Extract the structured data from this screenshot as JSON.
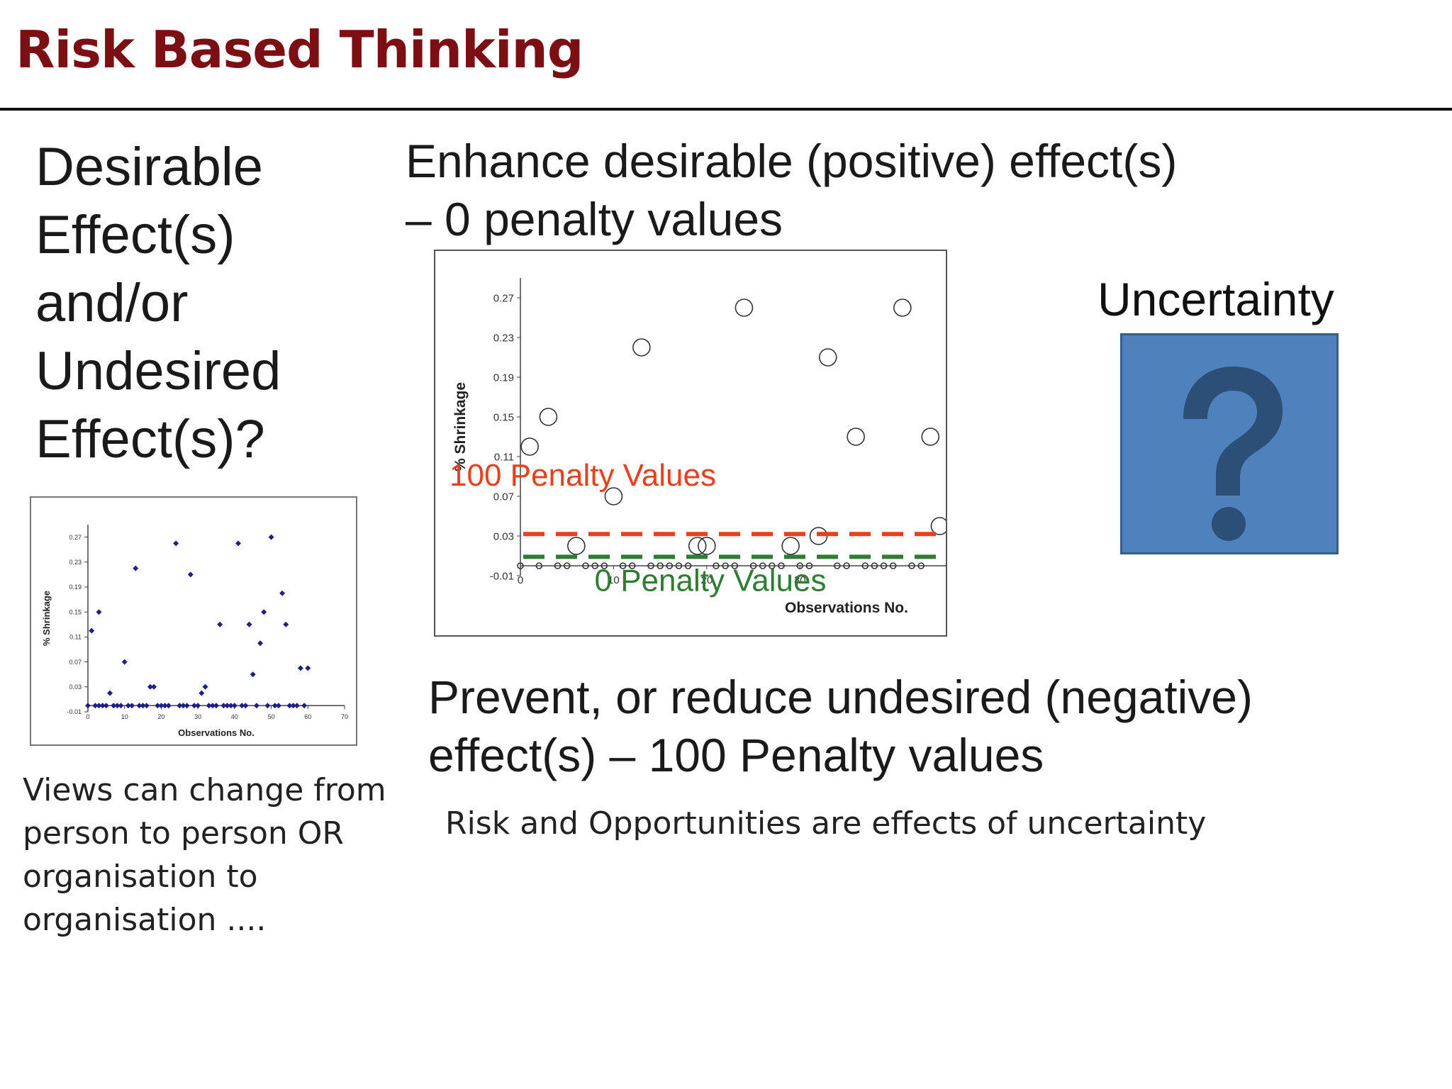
{
  "header": {
    "title": "Risk Based Thinking"
  },
  "question_lines": [
    "Desirable",
    "Effect(s)",
    "and/or",
    "Undesired",
    "Effect(s)?"
  ],
  "enhance_lines": [
    "Enhance desirable (positive) effect(s)",
    "– 0 penalty values"
  ],
  "prevent_lines": [
    "Prevent, or reduce undesired (negative)",
    "effect(s) – 100 Penalty values"
  ],
  "risk_note": "Risk and Opportunities are effects of uncertainty",
  "views_lines": [
    "Views can change from",
    "person to person OR",
    "organisation to",
    "organisation ...."
  ],
  "uncertainty": {
    "label": "Uncertainty",
    "icon": "question-mark-icon",
    "box_color": "#4f81bd",
    "glyph_color": "#2c4f78"
  },
  "chart_data": [
    {
      "type": "scatter",
      "xlabel": "Observations No.",
      "ylabel": "% Shrinkage",
      "xticks": [
        "0",
        "10",
        "20",
        "30",
        "40",
        "50",
        "60",
        "70"
      ],
      "yticks": [
        "0.27",
        "0.23",
        "0.19",
        "0.15",
        "0.11",
        "0.07",
        "0.03",
        "-0.01"
      ],
      "xlim": [
        0,
        70
      ],
      "ylim": [
        -0.01,
        0.29
      ],
      "marker_color": "#1f1f8a",
      "points": [
        [
          1,
          0.12
        ],
        [
          3,
          0.15
        ],
        [
          6,
          0.02
        ],
        [
          10,
          0.07
        ],
        [
          13,
          0.22
        ],
        [
          17,
          0.03
        ],
        [
          18,
          0.03
        ],
        [
          24,
          0.26
        ],
        [
          28,
          0.21
        ],
        [
          31,
          0.02
        ],
        [
          32,
          0.03
        ],
        [
          36,
          0.13
        ],
        [
          41,
          0.26
        ],
        [
          44,
          0.13
        ],
        [
          45,
          0.05
        ],
        [
          47,
          0.1
        ],
        [
          48,
          0.15
        ],
        [
          50,
          0.27
        ],
        [
          53,
          0.18
        ],
        [
          54,
          0.13
        ],
        [
          58,
          0.06
        ],
        [
          60,
          0.06
        ],
        [
          0,
          0
        ],
        [
          2,
          0
        ],
        [
          3,
          0
        ],
        [
          4,
          0
        ],
        [
          5,
          0
        ],
        [
          7,
          0
        ],
        [
          8,
          0
        ],
        [
          9,
          0
        ],
        [
          11,
          0
        ],
        [
          12,
          0
        ],
        [
          14,
          0
        ],
        [
          15,
          0
        ],
        [
          16,
          0
        ],
        [
          19,
          0
        ],
        [
          20,
          0
        ],
        [
          21,
          0
        ],
        [
          22,
          0
        ],
        [
          25,
          0
        ],
        [
          26,
          0
        ],
        [
          27,
          0
        ],
        [
          29,
          0
        ],
        [
          30,
          0
        ],
        [
          33,
          0
        ],
        [
          34,
          0
        ],
        [
          35,
          0
        ],
        [
          37,
          0
        ],
        [
          38,
          0
        ],
        [
          39,
          0
        ],
        [
          40,
          0
        ],
        [
          42,
          0
        ],
        [
          43,
          0
        ],
        [
          46,
          0
        ],
        [
          49,
          0
        ],
        [
          51,
          0
        ],
        [
          52,
          0
        ],
        [
          55,
          0
        ],
        [
          56,
          0
        ],
        [
          57,
          0
        ],
        [
          59,
          0
        ]
      ]
    },
    {
      "type": "scatter",
      "xlabel": "Observations No.",
      "ylabel": "% Shrinkage",
      "xticks": [
        "0",
        "10",
        "20",
        "30"
      ],
      "yticks": [
        "0.27",
        "0.23",
        "0.19",
        "0.15",
        "0.11",
        "0.07",
        "0.03",
        "-0.01"
      ],
      "xlim": [
        0,
        70
      ],
      "ylim": [
        -0.01,
        0.29
      ],
      "marker": "open-circle",
      "points": [
        [
          1,
          0.12
        ],
        [
          3,
          0.15
        ],
        [
          6,
          0.02
        ],
        [
          10,
          0.07
        ],
        [
          13,
          0.22
        ],
        [
          19,
          0.02
        ],
        [
          20,
          0.02
        ],
        [
          24,
          0.26
        ],
        [
          29,
          0.02
        ],
        [
          32,
          0.03
        ],
        [
          33,
          0.21
        ],
        [
          36,
          0.13
        ],
        [
          41,
          0.26
        ],
        [
          44,
          0.13
        ],
        [
          45,
          0.04
        ],
        [
          47,
          0.1
        ],
        [
          48,
          0.15
        ],
        [
          50,
          0.27
        ],
        [
          53,
          0.18
        ],
        [
          54,
          0.13
        ],
        [
          58,
          0.06
        ],
        [
          59,
          0.06
        ],
        [
          0,
          0
        ],
        [
          2,
          0
        ],
        [
          4,
          0
        ],
        [
          5,
          0
        ],
        [
          7,
          0
        ],
        [
          8,
          0
        ],
        [
          9,
          0
        ],
        [
          11,
          0
        ],
        [
          12,
          0
        ],
        [
          14,
          0
        ],
        [
          15,
          0
        ],
        [
          16,
          0
        ],
        [
          17,
          0
        ],
        [
          18,
          0
        ],
        [
          21,
          0
        ],
        [
          22,
          0
        ],
        [
          23,
          0
        ],
        [
          25,
          0
        ],
        [
          26,
          0
        ],
        [
          27,
          0
        ],
        [
          28,
          0
        ],
        [
          30,
          0
        ],
        [
          31,
          0
        ],
        [
          34,
          0
        ],
        [
          35,
          0
        ],
        [
          37,
          0
        ],
        [
          38,
          0
        ],
        [
          39,
          0
        ],
        [
          40,
          0
        ],
        [
          42,
          0
        ],
        [
          43,
          0
        ],
        [
          46,
          0
        ],
        [
          49,
          0
        ],
        [
          51,
          0
        ],
        [
          52,
          0
        ],
        [
          55,
          0
        ],
        [
          56,
          0
        ],
        [
          57,
          0
        ]
      ],
      "thresholds": [
        {
          "label": "100 Penalty Values",
          "y": 0.032,
          "color": "#e8401c"
        },
        {
          "label": "0 Penalty Values",
          "y": 0.009,
          "color": "#2e7d32"
        }
      ]
    }
  ]
}
